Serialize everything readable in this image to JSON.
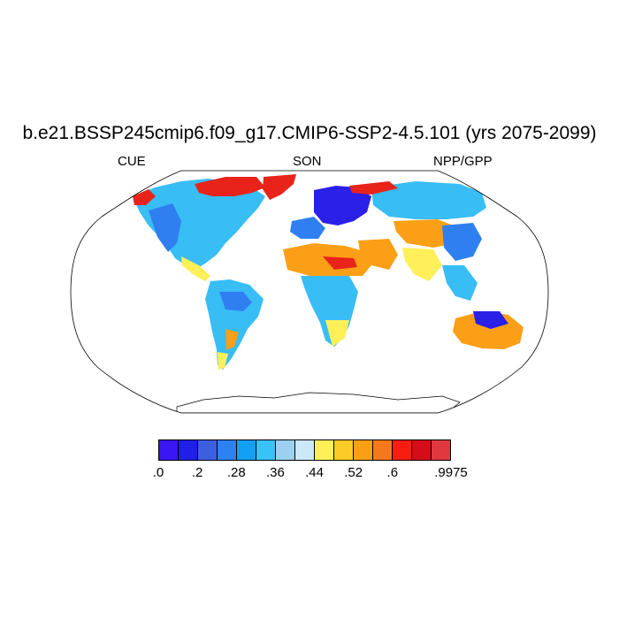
{
  "title": "b.e21.BSSP245cmip6.f09_g17.CMIP6-SSP2-4.5.101 (yrs 2075-2099)",
  "left_label": "CUE",
  "center_label": "SON",
  "right_label": "NPP/GPP",
  "colorbar": {
    "colors": [
      "#3a16f5",
      "#1f1fe8",
      "#3c5fe0",
      "#2a83f0",
      "#12a0f2",
      "#38c2f5",
      "#9bd0ee",
      "#cde8f8",
      "#fff05a",
      "#fccb26",
      "#fb9f16",
      "#f5791c",
      "#f81e0f",
      "#d60c1a",
      "#e0383f"
    ],
    "tick_labels": [
      ".0",
      ".2",
      ".28",
      ".36",
      ".44",
      ".52",
      ".6",
      ".9975"
    ]
  },
  "map": {
    "projection": "Robinson",
    "land_color_note": "values shown by colour",
    "colors": {
      "blue_deep": "#2a20e8",
      "blue": "#2f7ff0",
      "blue_light": "#38bdf5",
      "blue_pale": "#aed8f5",
      "yellow": "#fff05a",
      "orange": "#fb9f16",
      "red": "#e8231a",
      "outline": "#000000"
    }
  }
}
